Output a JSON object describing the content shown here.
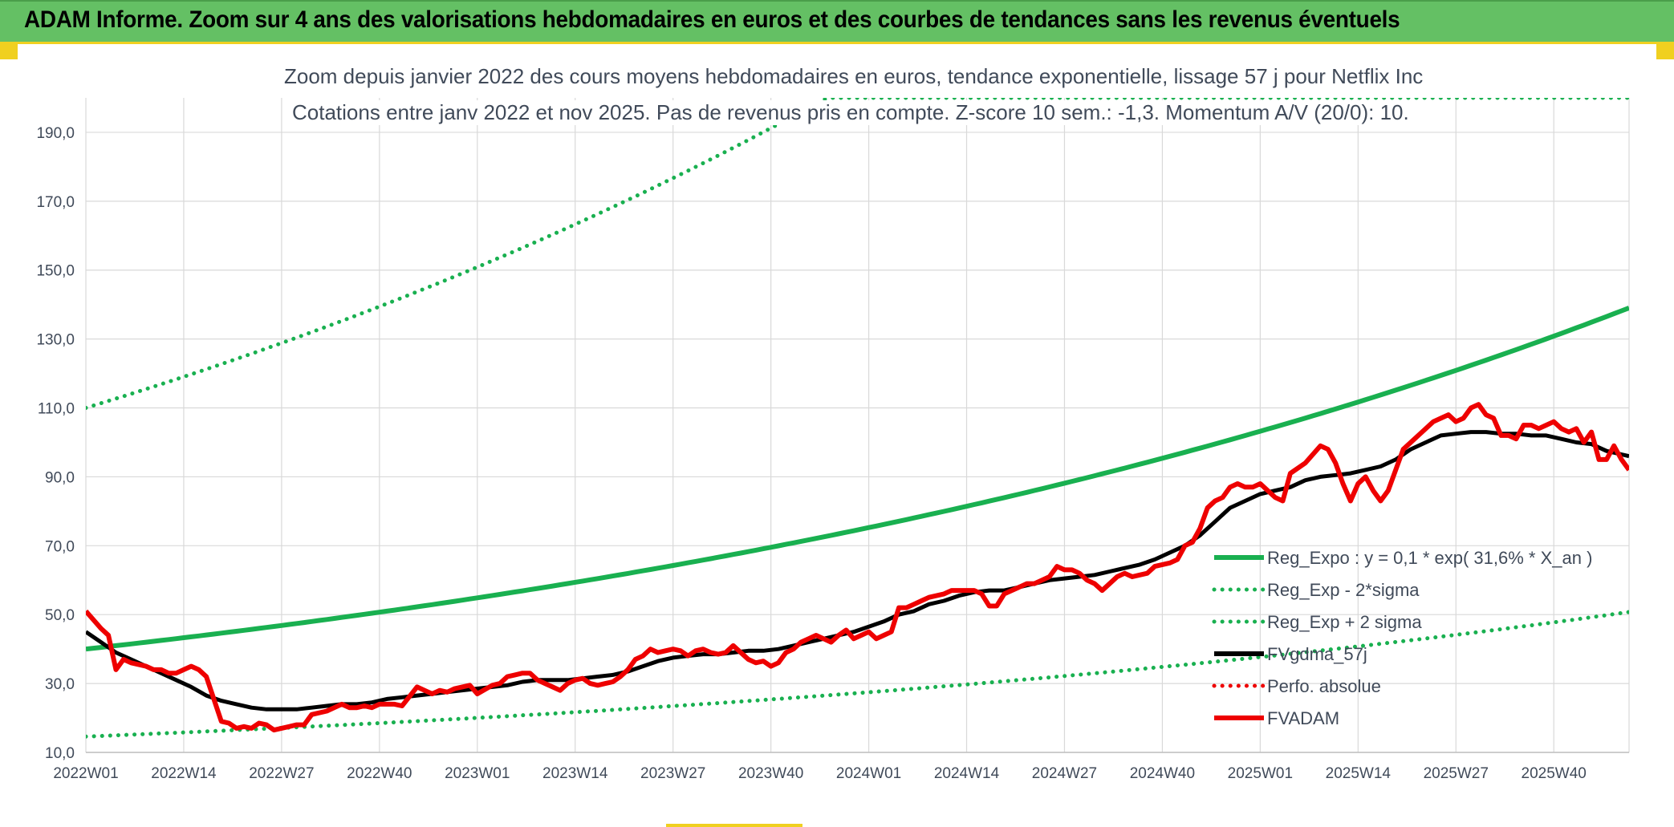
{
  "banner": {
    "title": "ADAM Informe. Zoom sur 4 ans des valorisations hebdomadaires en euros et des courbes de tendances sans les revenus éventuels"
  },
  "colors": {
    "banner_bg": "#64c064",
    "accent_yellow": "#f0d020",
    "trend_green": "#19b050",
    "price_red": "#ee0000",
    "smooth_black": "#000000"
  },
  "chart_data": {
    "type": "line",
    "title": "Zoom depuis janvier 2022 des cours moyens hebdomadaires en euros, tendance exponentielle, lissage 57 j pour Netflix Inc",
    "subtitle": "Cotations entre janv 2022 et nov 2025. Pas de revenus pris en compte. Z-score 10 sem.: -1,3. Momentum A/V (20/0): 10.",
    "xlabel": "",
    "ylabel": "",
    "ylim": [
      10,
      200
    ],
    "y_ticks": [
      "10,0",
      "30,0",
      "50,0",
      "70,0",
      "90,0",
      "110,0",
      "130,0",
      "150,0",
      "170,0",
      "190,0"
    ],
    "y_tick_values": [
      10,
      30,
      50,
      70,
      90,
      110,
      130,
      150,
      170,
      190
    ],
    "x_ticks": [
      "2022W01",
      "2022W14",
      "2022W27",
      "2022W40",
      "2023W01",
      "2023W14",
      "2023W27",
      "2023W40",
      "2024W01",
      "2024W14",
      "2024W27",
      "2024W40",
      "2025W01",
      "2025W14",
      "2025W27",
      "2025W40"
    ],
    "x_tick_weeks": [
      0,
      13,
      26,
      39,
      52,
      65,
      78,
      91,
      104,
      117,
      130,
      143,
      156,
      169,
      182,
      195
    ],
    "x_range_weeks": [
      0,
      205
    ],
    "grid": true,
    "legend_position": "right-middle",
    "legend": [
      {
        "name": "Reg_Expo : y = 0,1 * exp( 31,6% *  X_an )",
        "style": "solid",
        "color": "#19b050"
      },
      {
        "name": "Reg_Exp - 2*sigma",
        "style": "dotted",
        "color": "#19b050"
      },
      {
        "name": "Reg_Exp + 2 sigma",
        "style": "dotted",
        "color": "#19b050"
      },
      {
        "name": "FVgdma_57j",
        "style": "solid",
        "color": "#000000"
      },
      {
        "name": "Perfo. absolue",
        "style": "dotted",
        "color": "#ee0000"
      },
      {
        "name": "FVADAM",
        "style": "solid",
        "color": "#ee0000"
      }
    ],
    "trend": {
      "start_value": 40.0,
      "growth_per_year": 0.316,
      "lower_band_factor": 0.365,
      "upper_band_factor": 2.75,
      "upper_band_cap": 200
    },
    "series": [
      {
        "name": "FVADAM",
        "color": "#ee0000",
        "points": [
          [
            0,
            51
          ],
          [
            2,
            46
          ],
          [
            3,
            44
          ],
          [
            4,
            34
          ],
          [
            5,
            37
          ],
          [
            6,
            36
          ],
          [
            8,
            35
          ],
          [
            9,
            34
          ],
          [
            10,
            34
          ],
          [
            11,
            33
          ],
          [
            12,
            33
          ],
          [
            13,
            34
          ],
          [
            14,
            35
          ],
          [
            15,
            34
          ],
          [
            16,
            32
          ],
          [
            18,
            19
          ],
          [
            19,
            18.5
          ],
          [
            20,
            17
          ],
          [
            21,
            17.5
          ],
          [
            22,
            17
          ],
          [
            23,
            18.5
          ],
          [
            24,
            18
          ],
          [
            25,
            16.5
          ],
          [
            26,
            17
          ],
          [
            27,
            17.5
          ],
          [
            28,
            18
          ],
          [
            29,
            18
          ],
          [
            30,
            21
          ],
          [
            32,
            22
          ],
          [
            33,
            23
          ],
          [
            34,
            24
          ],
          [
            35,
            23
          ],
          [
            36,
            23
          ],
          [
            37,
            23.5
          ],
          [
            38,
            23
          ],
          [
            39,
            24
          ],
          [
            40,
            24
          ],
          [
            41,
            24
          ],
          [
            42,
            23.5
          ],
          [
            44,
            29
          ],
          [
            45,
            28
          ],
          [
            46,
            27
          ],
          [
            47,
            28
          ],
          [
            48,
            27.5
          ],
          [
            49,
            28.5
          ],
          [
            50,
            29
          ],
          [
            51,
            29.5
          ],
          [
            52,
            27
          ],
          [
            54,
            29.5
          ],
          [
            55,
            30
          ],
          [
            56,
            32
          ],
          [
            57,
            32.5
          ],
          [
            58,
            33
          ],
          [
            59,
            33
          ],
          [
            60,
            31
          ],
          [
            61,
            30
          ],
          [
            62,
            29
          ],
          [
            63,
            28
          ],
          [
            64,
            30
          ],
          [
            65,
            31
          ],
          [
            66,
            31.5
          ],
          [
            67,
            30
          ],
          [
            68,
            29.5
          ],
          [
            69,
            30
          ],
          [
            70,
            30.5
          ],
          [
            71,
            32
          ],
          [
            72,
            34
          ],
          [
            73,
            37
          ],
          [
            74,
            38
          ],
          [
            75,
            40
          ],
          [
            76,
            39
          ],
          [
            77,
            39.5
          ],
          [
            78,
            40
          ],
          [
            79,
            39.5
          ],
          [
            80,
            38
          ],
          [
            81,
            39.5
          ],
          [
            82,
            40
          ],
          [
            83,
            39
          ],
          [
            84,
            38.5
          ],
          [
            85,
            39
          ],
          [
            86,
            41
          ],
          [
            87,
            39
          ],
          [
            88,
            37
          ],
          [
            89,
            36
          ],
          [
            90,
            36.5
          ],
          [
            91,
            35
          ],
          [
            92,
            36
          ],
          [
            93,
            39
          ],
          [
            94,
            40
          ],
          [
            95,
            42
          ],
          [
            96,
            43
          ],
          [
            97,
            44
          ],
          [
            98,
            43
          ],
          [
            99,
            42
          ],
          [
            100,
            44
          ],
          [
            101,
            45.5
          ],
          [
            102,
            43
          ],
          [
            103,
            44
          ],
          [
            104,
            45
          ],
          [
            105,
            43
          ],
          [
            106,
            44
          ],
          [
            107,
            45
          ],
          [
            108,
            52
          ],
          [
            109,
            52
          ],
          [
            110,
            53
          ],
          [
            111,
            54
          ],
          [
            112,
            55
          ],
          [
            113,
            55.5
          ],
          [
            114,
            56
          ],
          [
            115,
            57
          ],
          [
            116,
            57
          ],
          [
            117,
            57
          ],
          [
            118,
            57
          ],
          [
            119,
            56
          ],
          [
            120,
            52.5
          ],
          [
            121,
            52.5
          ],
          [
            122,
            56
          ],
          [
            123,
            57
          ],
          [
            124,
            58
          ],
          [
            125,
            59
          ],
          [
            126,
            59
          ],
          [
            127,
            60
          ],
          [
            128,
            61
          ],
          [
            129,
            64
          ],
          [
            130,
            63
          ],
          [
            131,
            63
          ],
          [
            132,
            62
          ],
          [
            133,
            60
          ],
          [
            134,
            59
          ],
          [
            135,
            57
          ],
          [
            136,
            59
          ],
          [
            137,
            61
          ],
          [
            138,
            62
          ],
          [
            139,
            61
          ],
          [
            140,
            61.5
          ],
          [
            141,
            62
          ],
          [
            142,
            64
          ],
          [
            143,
            64.5
          ],
          [
            144,
            65
          ],
          [
            145,
            66
          ],
          [
            146,
            70
          ],
          [
            147,
            71
          ],
          [
            148,
            75
          ],
          [
            149,
            81
          ],
          [
            150,
            83
          ],
          [
            151,
            84
          ],
          [
            152,
            87
          ],
          [
            153,
            88
          ],
          [
            154,
            87
          ],
          [
            155,
            87
          ],
          [
            156,
            88
          ],
          [
            157,
            86
          ],
          [
            158,
            84
          ],
          [
            159,
            83
          ],
          [
            160,
            91
          ],
          [
            162,
            94
          ],
          [
            164,
            99
          ],
          [
            165,
            98
          ],
          [
            166,
            94
          ],
          [
            167,
            88
          ],
          [
            168,
            83
          ],
          [
            169,
            88
          ],
          [
            170,
            90
          ],
          [
            171,
            86
          ],
          [
            172,
            83
          ],
          [
            173,
            86
          ],
          [
            175,
            98
          ],
          [
            176,
            100
          ],
          [
            177,
            102
          ],
          [
            178,
            104
          ],
          [
            179,
            106
          ],
          [
            180,
            107
          ],
          [
            181,
            108
          ],
          [
            182,
            106
          ],
          [
            183,
            107
          ],
          [
            184,
            110
          ],
          [
            185,
            111
          ],
          [
            186,
            108
          ],
          [
            187,
            107
          ],
          [
            188,
            102
          ],
          [
            189,
            102
          ],
          [
            190,
            101
          ],
          [
            191,
            105
          ],
          [
            192,
            105
          ],
          [
            193,
            104
          ],
          [
            194,
            105
          ],
          [
            195,
            106
          ],
          [
            196,
            104
          ],
          [
            197,
            103
          ],
          [
            198,
            104
          ],
          [
            199,
            100
          ],
          [
            200,
            103
          ],
          [
            201,
            95
          ],
          [
            202,
            95
          ],
          [
            203,
            99
          ],
          [
            204,
            95
          ],
          [
            205,
            92
          ]
        ]
      },
      {
        "name": "FVgdma_57j",
        "color": "#000000",
        "points": [
          [
            0,
            45
          ],
          [
            2,
            42
          ],
          [
            4,
            39
          ],
          [
            6,
            37
          ],
          [
            8,
            35
          ],
          [
            10,
            33
          ],
          [
            12,
            31
          ],
          [
            14,
            29
          ],
          [
            16,
            26.5
          ],
          [
            18,
            25
          ],
          [
            20,
            24
          ],
          [
            22,
            23
          ],
          [
            24,
            22.5
          ],
          [
            26,
            22.5
          ],
          [
            28,
            22.5
          ],
          [
            30,
            23
          ],
          [
            32,
            23.5
          ],
          [
            34,
            24
          ],
          [
            36,
            24
          ],
          [
            38,
            24.5
          ],
          [
            40,
            25.5
          ],
          [
            42,
            26
          ],
          [
            44,
            26.5
          ],
          [
            46,
            27
          ],
          [
            48,
            27.5
          ],
          [
            50,
            28
          ],
          [
            52,
            28.5
          ],
          [
            54,
            29
          ],
          [
            56,
            29.5
          ],
          [
            58,
            30.5
          ],
          [
            60,
            31
          ],
          [
            62,
            31
          ],
          [
            64,
            31
          ],
          [
            66,
            31.5
          ],
          [
            68,
            32
          ],
          [
            70,
            32.5
          ],
          [
            72,
            33.5
          ],
          [
            74,
            35
          ],
          [
            76,
            36.5
          ],
          [
            78,
            37.5
          ],
          [
            80,
            38
          ],
          [
            82,
            38.5
          ],
          [
            84,
            38.5
          ],
          [
            86,
            39
          ],
          [
            88,
            39.5
          ],
          [
            90,
            39.5
          ],
          [
            92,
            40
          ],
          [
            94,
            41
          ],
          [
            96,
            42
          ],
          [
            98,
            43
          ],
          [
            100,
            44
          ],
          [
            102,
            45
          ],
          [
            104,
            46.5
          ],
          [
            106,
            48
          ],
          [
            108,
            50
          ],
          [
            110,
            51
          ],
          [
            112,
            53
          ],
          [
            114,
            54
          ],
          [
            116,
            55.5
          ],
          [
            118,
            56.5
          ],
          [
            120,
            57
          ],
          [
            122,
            57
          ],
          [
            124,
            58
          ],
          [
            126,
            59
          ],
          [
            128,
            60
          ],
          [
            130,
            60.5
          ],
          [
            132,
            61
          ],
          [
            134,
            61.5
          ],
          [
            136,
            62.5
          ],
          [
            138,
            63.5
          ],
          [
            140,
            64.5
          ],
          [
            142,
            66
          ],
          [
            144,
            68
          ],
          [
            146,
            70
          ],
          [
            148,
            73
          ],
          [
            150,
            77
          ],
          [
            152,
            81
          ],
          [
            154,
            83
          ],
          [
            156,
            85
          ],
          [
            158,
            86
          ],
          [
            160,
            87
          ],
          [
            162,
            89
          ],
          [
            164,
            90
          ],
          [
            166,
            90.5
          ],
          [
            168,
            91
          ],
          [
            170,
            92
          ],
          [
            172,
            93
          ],
          [
            174,
            95
          ],
          [
            176,
            98
          ],
          [
            178,
            100
          ],
          [
            180,
            102
          ],
          [
            182,
            102.5
          ],
          [
            184,
            103
          ],
          [
            186,
            103
          ],
          [
            188,
            102.5
          ],
          [
            190,
            102.5
          ],
          [
            192,
            102
          ],
          [
            194,
            102
          ],
          [
            196,
            101
          ],
          [
            198,
            100
          ],
          [
            200,
            99.5
          ],
          [
            202,
            97.5
          ],
          [
            204,
            96.5
          ],
          [
            205,
            96
          ]
        ]
      }
    ]
  }
}
